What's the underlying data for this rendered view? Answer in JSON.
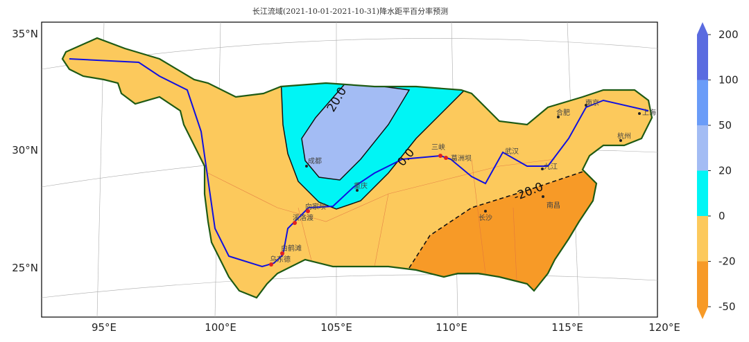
{
  "title": "长江流域(2021-10-01-2021-10-31)降水距平百分率预测",
  "axes": {
    "lon_ticks": [
      "95°E",
      "100°E",
      "105°E",
      "110°E",
      "115°E",
      "120°E"
    ],
    "lat_ticks": [
      "35°N",
      "30°N",
      "25°N"
    ]
  },
  "contour_labels": {
    "plus20": "20.0",
    "zero": "0.0",
    "minus20": "-20.0"
  },
  "colorbar": {
    "ticks": [
      "200",
      "100",
      "50",
      "20",
      "0",
      "-20",
      "-50"
    ],
    "colors": [
      "#5a6be0",
      "#6a9cf8",
      "#a3bcf4",
      "#00f5f5",
      "#fcc95c",
      "#f79a27"
    ],
    "extend": "both"
  },
  "colors": {
    "basin_border": "#1e5a14",
    "river": "#1010e0",
    "station": "#e02020"
  },
  "cities": [
    {
      "name": "成都"
    },
    {
      "name": "重庆"
    },
    {
      "name": "向家坝"
    },
    {
      "name": "溪洛渡"
    },
    {
      "name": "白鹤滩"
    },
    {
      "name": "乌东德"
    },
    {
      "name": "三峡"
    },
    {
      "name": "葛洲坝"
    },
    {
      "name": "武汉"
    },
    {
      "name": "九江"
    },
    {
      "name": "合肥"
    },
    {
      "name": "南京"
    },
    {
      "name": "上海"
    },
    {
      "name": "杭州"
    },
    {
      "name": "南昌"
    },
    {
      "name": "长沙"
    }
  ]
}
